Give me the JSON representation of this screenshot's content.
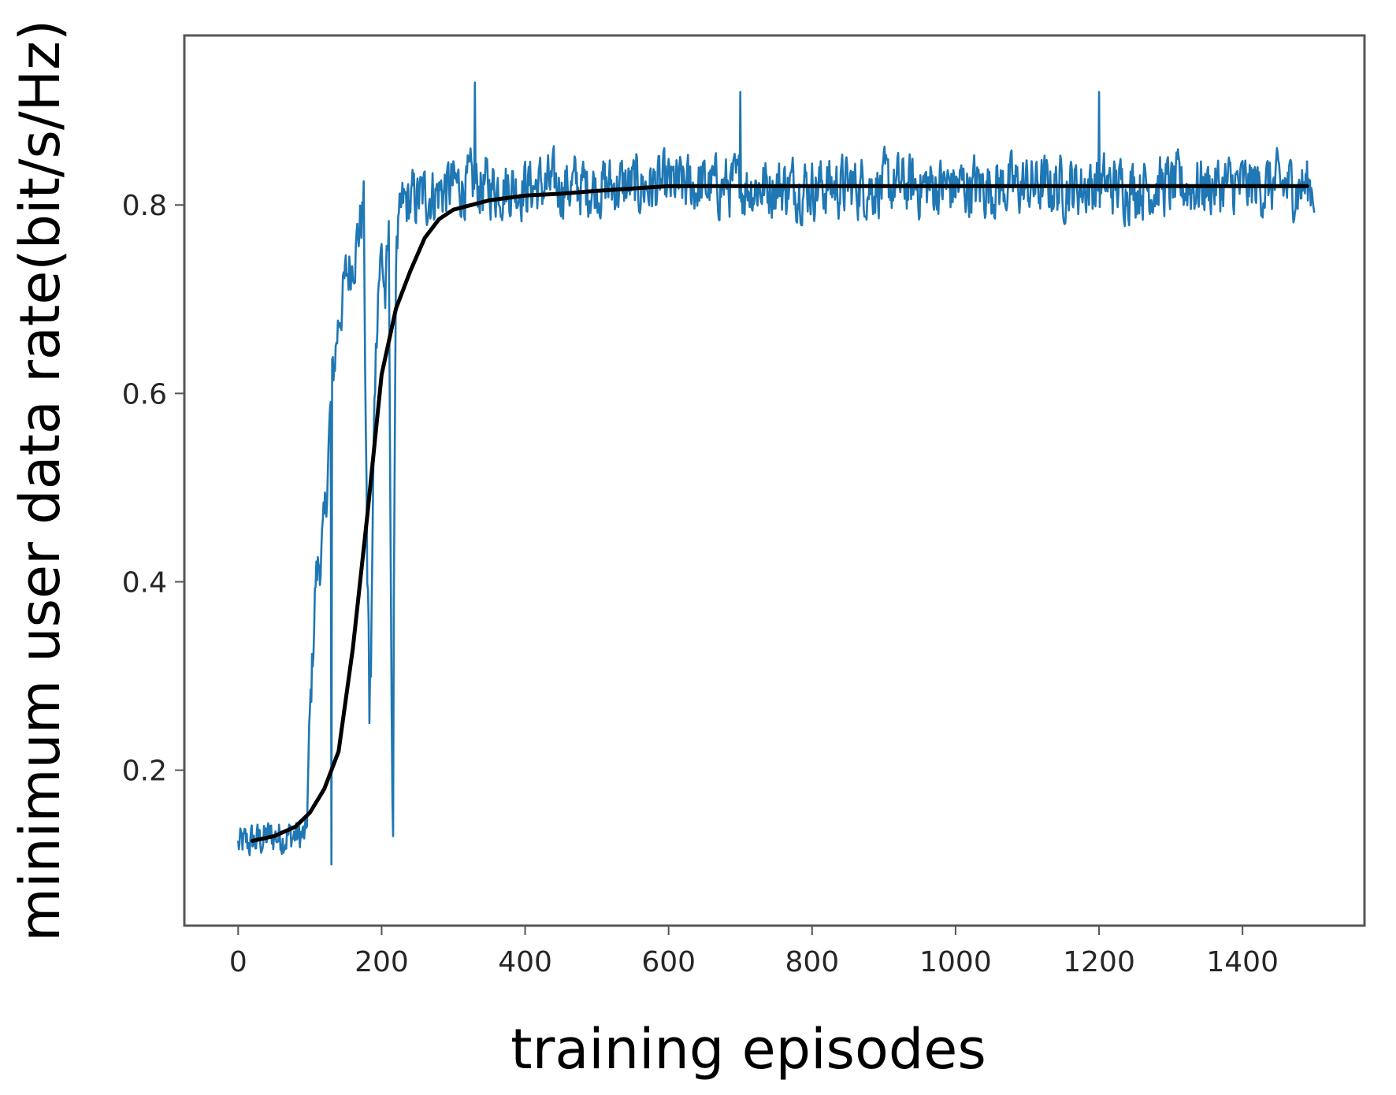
{
  "chart_data": {
    "type": "line",
    "xlabel": "training episodes",
    "ylabel": "minimum user data rate(bit/s/Hz)",
    "xlim": [
      -75,
      1570
    ],
    "ylim": [
      0.035,
      0.98
    ],
    "xticks": [
      0,
      200,
      400,
      600,
      800,
      1000,
      1200,
      1400
    ],
    "yticks": [
      0.2,
      0.4,
      0.6,
      0.8
    ],
    "ytick_labels": [
      "0.2",
      "0.4",
      "0.6",
      "0.8"
    ],
    "grid": false,
    "colors": {
      "raw": "#1f77b4",
      "smoothed": "#000000",
      "frame": "#555555"
    },
    "series": [
      {
        "style": "raw-noisy",
        "x_range": [
          0,
          1500
        ],
        "noise_amplitude": 0.05,
        "anchors": {
          "x": [
            0,
            50,
            95,
            100,
            108,
            120,
            130,
            140,
            150,
            165,
            175,
            180,
            185,
            190,
            195,
            200,
            205,
            210,
            215,
            220,
            230,
            260,
            300,
            1500
          ],
          "y": [
            0.12,
            0.13,
            0.13,
            0.25,
            0.4,
            0.45,
            0.6,
            0.68,
            0.72,
            0.76,
            0.8,
            0.4,
            0.3,
            0.6,
            0.72,
            0.75,
            0.7,
            0.76,
            0.15,
            0.75,
            0.8,
            0.81,
            0.82,
            0.82
          ]
        },
        "outliers": [
          {
            "x": 130,
            "y": 0.1
          },
          {
            "x": 183,
            "y": 0.25
          },
          {
            "x": 216,
            "y": 0.13
          },
          {
            "x": 330,
            "y": 0.93
          },
          {
            "x": 700,
            "y": 0.92
          },
          {
            "x": 1200,
            "y": 0.92
          }
        ]
      },
      {
        "style": "smoothed",
        "x": [
          20,
          50,
          80,
          100,
          120,
          140,
          160,
          180,
          200,
          220,
          240,
          260,
          280,
          300,
          350,
          400,
          450,
          500,
          600,
          800,
          1000,
          1200,
          1400,
          1490
        ],
        "y": [
          0.125,
          0.13,
          0.14,
          0.155,
          0.18,
          0.22,
          0.33,
          0.47,
          0.62,
          0.69,
          0.73,
          0.765,
          0.785,
          0.795,
          0.805,
          0.81,
          0.812,
          0.815,
          0.82,
          0.82,
          0.82,
          0.82,
          0.82,
          0.82
        ]
      }
    ]
  }
}
